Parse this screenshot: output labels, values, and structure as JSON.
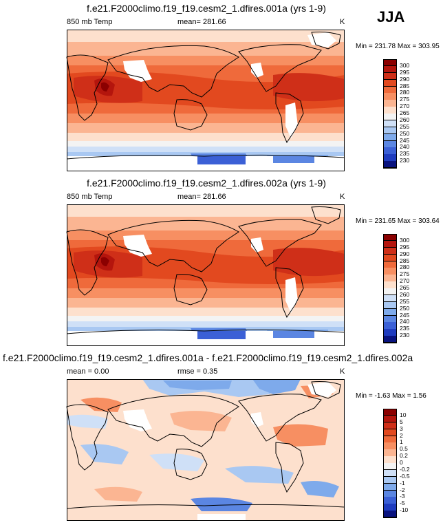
{
  "season": "JJA",
  "chart_data": [
    {
      "type": "heatmap",
      "title": "f.e21.F2000climo.f19_f19.cesm2_1.dfires.001a (yrs 1-9)",
      "left_label": "850 mb Temp",
      "center_label": "mean= 281.66",
      "units": "K",
      "min_max": "Min = 231.78 Max = 303.95",
      "colorbar_levels": [
        "300",
        "295",
        "290",
        "285",
        "280",
        "275",
        "270",
        "265",
        "260",
        "255",
        "250",
        "245",
        "240",
        "235",
        "230"
      ],
      "colorbar_colors": [
        "#8b0000",
        "#b4150d",
        "#cf2f18",
        "#e2491f",
        "#ef6a3b",
        "#f78f62",
        "#fbb592",
        "#fde0cd",
        "#f3f3f3",
        "#cfe0f7",
        "#a9c8f2",
        "#7eaaeb",
        "#5b86e2",
        "#3b60d6",
        "#1f3cbf",
        "#09137f"
      ]
    },
    {
      "type": "heatmap",
      "title": "f.e21.F2000climo.f19_f19.cesm2_1.dfires.002a (yrs 1-9)",
      "left_label": "850 mb Temp",
      "center_label": "mean= 281.66",
      "units": "K",
      "min_max": "Min = 231.65 Max = 303.64",
      "colorbar_levels": [
        "300",
        "295",
        "290",
        "285",
        "280",
        "275",
        "270",
        "265",
        "260",
        "255",
        "250",
        "245",
        "240",
        "235",
        "230"
      ],
      "colorbar_colors": [
        "#8b0000",
        "#b4150d",
        "#cf2f18",
        "#e2491f",
        "#ef6a3b",
        "#f78f62",
        "#fbb592",
        "#fde0cd",
        "#f3f3f3",
        "#cfe0f7",
        "#a9c8f2",
        "#7eaaeb",
        "#5b86e2",
        "#3b60d6",
        "#1f3cbf",
        "#09137f"
      ]
    },
    {
      "type": "heatmap",
      "title": "f.e21.F2000climo.f19_f19.cesm2_1.dfires.001a - f.e21.F2000climo.f19_f19.cesm2_1.dfires.002a",
      "left_label": "mean =   0.00",
      "center_label": "rmse =   0.35",
      "units": "K",
      "min_max": "Min =  -1.63 Max =   1.56",
      "colorbar_levels": [
        "10",
        "5",
        "3",
        "2",
        "1",
        "0.5",
        "0.2",
        "0",
        "-0.2",
        "-0.5",
        "-1",
        "-2",
        "-3",
        "-5",
        "-10"
      ],
      "colorbar_colors": [
        "#8b0000",
        "#b4150d",
        "#cf2f18",
        "#e2491f",
        "#ef6a3b",
        "#f78f62",
        "#fbb592",
        "#fde0cd",
        "#f3f3f3",
        "#cfe0f7",
        "#a9c8f2",
        "#7eaaeb",
        "#5b86e2",
        "#3b60d6",
        "#1f3cbf",
        "#09137f"
      ]
    }
  ]
}
